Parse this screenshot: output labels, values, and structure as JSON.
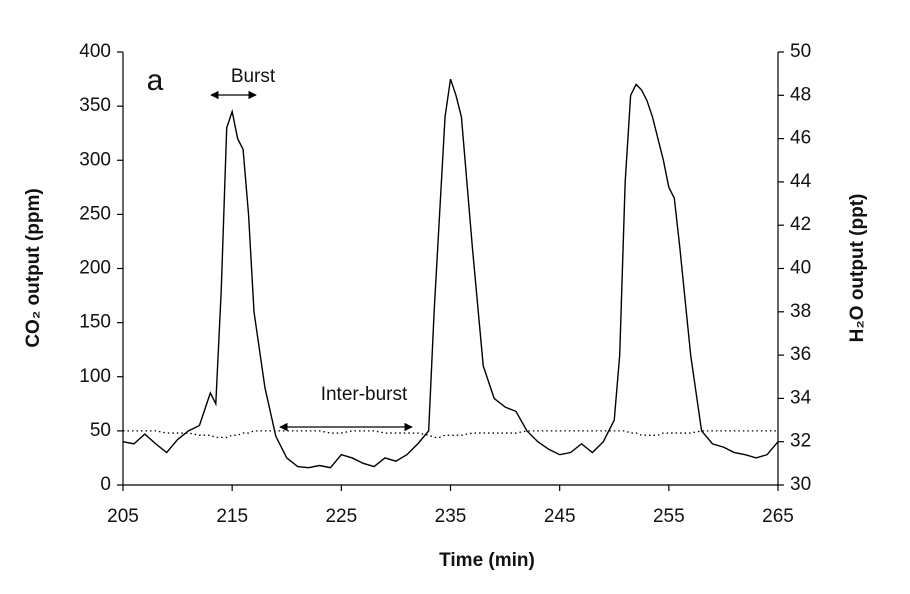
{
  "chart_data": {
    "type": "line",
    "title_letter": "a",
    "xlabel": "Time (min)",
    "ylabel": "CO₂ output (ppm)",
    "y2label": "H₂O output (ppt)",
    "annotations": [
      "Burst",
      "Inter-burst"
    ],
    "x": [
      205,
      206,
      207,
      208,
      209,
      210,
      211,
      212,
      213,
      213.5,
      214,
      214.5,
      215,
      215.5,
      216,
      216.5,
      217,
      218,
      219,
      220,
      221,
      222,
      223,
      224,
      225,
      226,
      227,
      228,
      229,
      230,
      231,
      232,
      233,
      233.5,
      234,
      234.5,
      235,
      235.5,
      236,
      237,
      238,
      239,
      240,
      241,
      242,
      243,
      244,
      245,
      246,
      247,
      248,
      249,
      250,
      250.5,
      251,
      251.5,
      252,
      252.5,
      253,
      253.5,
      254,
      254.5,
      255,
      255.5,
      256,
      257,
      258,
      259,
      260,
      261,
      262,
      263,
      264,
      265
    ],
    "series": [
      {
        "color": "#000000",
        "style": "solid",
        "values": [
          40,
          38,
          47,
          38,
          30,
          42,
          50,
          55,
          85,
          75,
          180,
          330,
          345,
          320,
          310,
          250,
          160,
          90,
          45,
          25,
          17,
          16,
          18,
          16,
          28,
          25,
          20,
          17,
          25,
          22,
          28,
          38,
          50,
          160,
          250,
          340,
          375,
          360,
          340,
          220,
          110,
          80,
          72,
          68,
          50,
          40,
          33,
          28,
          30,
          38,
          30,
          40,
          60,
          120,
          280,
          360,
          370,
          365,
          355,
          340,
          320,
          300,
          275,
          265,
          220,
          120,
          50,
          38,
          35,
          30,
          28,
          25,
          28,
          40
        ]
      },
      {
        "color": "#000000",
        "style": "dotted",
        "axis": "y2",
        "values": [
          32.5,
          32.5,
          32.5,
          32.5,
          32.4,
          32.4,
          32.4,
          32.3,
          32.3,
          32.2,
          32.2,
          32.2,
          32.3,
          32.3,
          32.4,
          32.4,
          32.5,
          32.5,
          32.5,
          32.5,
          32.5,
          32.5,
          32.5,
          32.4,
          32.4,
          32.5,
          32.5,
          32.5,
          32.4,
          32.4,
          32.4,
          32.4,
          32.3,
          32.2,
          32.2,
          32.3,
          32.3,
          32.3,
          32.3,
          32.4,
          32.4,
          32.4,
          32.4,
          32.4,
          32.5,
          32.5,
          32.5,
          32.5,
          32.5,
          32.5,
          32.5,
          32.5,
          32.5,
          32.5,
          32.5,
          32.4,
          32.4,
          32.3,
          32.3,
          32.3,
          32.3,
          32.4,
          32.4,
          32.4,
          32.4,
          32.4,
          32.5,
          32.5,
          32.5,
          32.5,
          32.5,
          32.5,
          32.5,
          32.5
        ]
      }
    ],
    "xlim": [
      205,
      265
    ],
    "xticks": [
      205,
      215,
      225,
      235,
      245,
      255,
      265
    ],
    "ylim": [
      0,
      400
    ],
    "yticks": [
      0,
      50,
      100,
      150,
      200,
      250,
      300,
      350,
      400
    ],
    "y2lim": [
      30,
      50
    ],
    "y2ticks": [
      30,
      32,
      34,
      36,
      38,
      40,
      42,
      44,
      46,
      48,
      50
    ],
    "grid": false
  }
}
